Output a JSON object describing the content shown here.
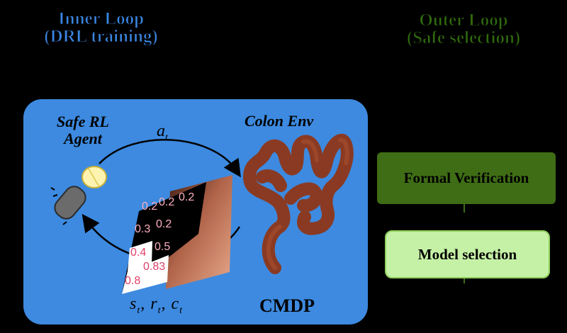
{
  "inner_loop": {
    "title": "Inner Loop",
    "subtitle": "(DRL training)"
  },
  "outer_loop": {
    "title": "Outer Loop",
    "subtitle": "(Safe selection)"
  },
  "cmdp": {
    "agent_label_line1": "Safe RL",
    "agent_label_line2": "Agent",
    "env_label": "Colon Env",
    "action_label": "a",
    "action_sub": "t",
    "feedback_s": "s",
    "feedback_r": "r",
    "feedback_c": "c",
    "feedback_sub": "t",
    "footer_label": "CMDP"
  },
  "observation_grid": {
    "row1": [
      "0.2",
      "0.2",
      "0.2"
    ],
    "row2": [
      "0.3",
      "0.2"
    ],
    "row3": [
      "0.4",
      "0.5"
    ],
    "row4": [
      "0.83"
    ],
    "row5": [
      "0.8"
    ]
  },
  "pipeline": {
    "verification_label": "Formal Verification",
    "selection_label": "Model selection"
  },
  "colors": {
    "inner_accent": "#3a86e2",
    "outer_accent": "#2f6a0d",
    "cmdp_background": "#3d8ae0",
    "verification_fill": "#3f6d15",
    "selection_fill": "#c5f1a6",
    "colon_color": "#8a3a22"
  }
}
